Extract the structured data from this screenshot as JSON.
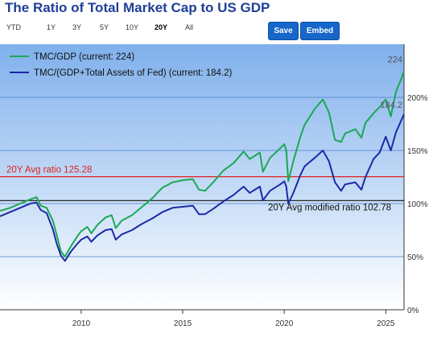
{
  "header": {
    "title": "The Ratio of Total Market Cap to US GDP"
  },
  "range_selector": {
    "options": [
      "YTD",
      "1Y",
      "3Y",
      "5Y",
      "10Y",
      "20Y",
      "All"
    ],
    "active": "20Y"
  },
  "buttons": {
    "save_label": "Save",
    "embed_label": "Embed"
  },
  "colors": {
    "title": "#1f3f99",
    "series_tmc_gdp": "#1aa855",
    "series_tmc_gdp_fed": "#1a2aa6",
    "avg_line": "#e02020",
    "modified_avg_line": "#111111",
    "plot_bg_top": "#7fb0ec",
    "plot_bg_bottom": "#ffffff",
    "button": "#1766c9"
  },
  "chart_data": {
    "type": "line",
    "title": "",
    "xlabel": "",
    "ylabel": "",
    "xlim": [
      2006.0,
      2025.9
    ],
    "ylim": [
      0,
      250
    ],
    "x_ticks": [
      2010,
      2015,
      2020,
      2025
    ],
    "y_ticks": [
      {
        "value": 0,
        "label": "0%"
      },
      {
        "value": 50,
        "label": "50%"
      },
      {
        "value": 100,
        "label": "100%"
      },
      {
        "value": 150,
        "label": "150%"
      },
      {
        "value": 200,
        "label": "200%"
      }
    ],
    "grid": true,
    "legend_position": "top-left",
    "series": [
      {
        "name": "TMC/GDP (current: 224)",
        "end_label": "224",
        "points": [
          [
            2006.0,
            93
          ],
          [
            2006.5,
            96
          ],
          [
            2007.0,
            100
          ],
          [
            2007.5,
            104
          ],
          [
            2007.8,
            106
          ],
          [
            2008.0,
            98
          ],
          [
            2008.3,
            96
          ],
          [
            2008.6,
            84
          ],
          [
            2008.8,
            70
          ],
          [
            2009.0,
            55
          ],
          [
            2009.2,
            50
          ],
          [
            2009.5,
            60
          ],
          [
            2009.8,
            69
          ],
          [
            2010.0,
            74
          ],
          [
            2010.3,
            78
          ],
          [
            2010.5,
            72
          ],
          [
            2010.8,
            80
          ],
          [
            2011.2,
            87
          ],
          [
            2011.5,
            89
          ],
          [
            2011.7,
            77
          ],
          [
            2012.0,
            84
          ],
          [
            2012.5,
            89
          ],
          [
            2013.0,
            97
          ],
          [
            2013.5,
            105
          ],
          [
            2014.0,
            115
          ],
          [
            2014.5,
            120
          ],
          [
            2015.0,
            122
          ],
          [
            2015.5,
            123
          ],
          [
            2015.8,
            113
          ],
          [
            2016.1,
            112
          ],
          [
            2016.5,
            120
          ],
          [
            2017.0,
            131
          ],
          [
            2017.5,
            138
          ],
          [
            2018.0,
            149
          ],
          [
            2018.3,
            142
          ],
          [
            2018.8,
            148
          ],
          [
            2018.95,
            130
          ],
          [
            2019.3,
            143
          ],
          [
            2019.8,
            152
          ],
          [
            2020.0,
            156
          ],
          [
            2020.1,
            150
          ],
          [
            2020.2,
            121
          ],
          [
            2020.45,
            140
          ],
          [
            2020.8,
            163
          ],
          [
            2021.0,
            174
          ],
          [
            2021.5,
            189
          ],
          [
            2021.9,
            198
          ],
          [
            2022.2,
            186
          ],
          [
            2022.5,
            160
          ],
          [
            2022.8,
            158
          ],
          [
            2023.0,
            166
          ],
          [
            2023.5,
            170
          ],
          [
            2023.8,
            162
          ],
          [
            2024.0,
            176
          ],
          [
            2024.4,
            185
          ],
          [
            2024.7,
            191
          ],
          [
            2025.0,
            198
          ],
          [
            2025.25,
            182
          ],
          [
            2025.5,
            205
          ],
          [
            2025.9,
            224
          ]
        ]
      },
      {
        "name": "TMC/(GDP+Total Assets of Fed) (current: 184.2)",
        "end_label": "184.2",
        "points": [
          [
            2006.0,
            88
          ],
          [
            2006.5,
            92
          ],
          [
            2007.0,
            96
          ],
          [
            2007.5,
            100
          ],
          [
            2007.8,
            101
          ],
          [
            2008.0,
            94
          ],
          [
            2008.3,
            91
          ],
          [
            2008.6,
            76
          ],
          [
            2008.8,
            62
          ],
          [
            2009.0,
            51
          ],
          [
            2009.2,
            46
          ],
          [
            2009.5,
            55
          ],
          [
            2009.8,
            62
          ],
          [
            2010.0,
            66
          ],
          [
            2010.3,
            69
          ],
          [
            2010.5,
            64
          ],
          [
            2010.8,
            70
          ],
          [
            2011.2,
            75
          ],
          [
            2011.5,
            76
          ],
          [
            2011.7,
            66
          ],
          [
            2012.0,
            71
          ],
          [
            2012.5,
            75
          ],
          [
            2013.0,
            81
          ],
          [
            2013.5,
            86
          ],
          [
            2014.0,
            92
          ],
          [
            2014.5,
            96
          ],
          [
            2015.0,
            97
          ],
          [
            2015.5,
            98
          ],
          [
            2015.8,
            90
          ],
          [
            2016.1,
            90
          ],
          [
            2016.5,
            95
          ],
          [
            2017.0,
            102
          ],
          [
            2017.5,
            108
          ],
          [
            2018.0,
            116
          ],
          [
            2018.3,
            110
          ],
          [
            2018.8,
            116
          ],
          [
            2018.95,
            103
          ],
          [
            2019.3,
            112
          ],
          [
            2019.8,
            118
          ],
          [
            2020.0,
            121
          ],
          [
            2020.1,
            116
          ],
          [
            2020.2,
            100
          ],
          [
            2020.45,
            110
          ],
          [
            2020.8,
            127
          ],
          [
            2021.0,
            135
          ],
          [
            2021.5,
            143
          ],
          [
            2021.9,
            150
          ],
          [
            2022.2,
            140
          ],
          [
            2022.5,
            120
          ],
          [
            2022.8,
            112
          ],
          [
            2023.0,
            118
          ],
          [
            2023.5,
            120
          ],
          [
            2023.8,
            113
          ],
          [
            2024.0,
            125
          ],
          [
            2024.4,
            142
          ],
          [
            2024.7,
            148
          ],
          [
            2025.0,
            163
          ],
          [
            2025.25,
            150
          ],
          [
            2025.5,
            167
          ],
          [
            2025.9,
            184.2
          ]
        ]
      }
    ],
    "reference_lines": [
      {
        "value": 125.28,
        "label": "20Y Avg ratio 125.28",
        "label_side": "left"
      },
      {
        "value": 102.78,
        "label": "20Y Avg modified ratio 102.78",
        "label_side": "right"
      }
    ]
  }
}
